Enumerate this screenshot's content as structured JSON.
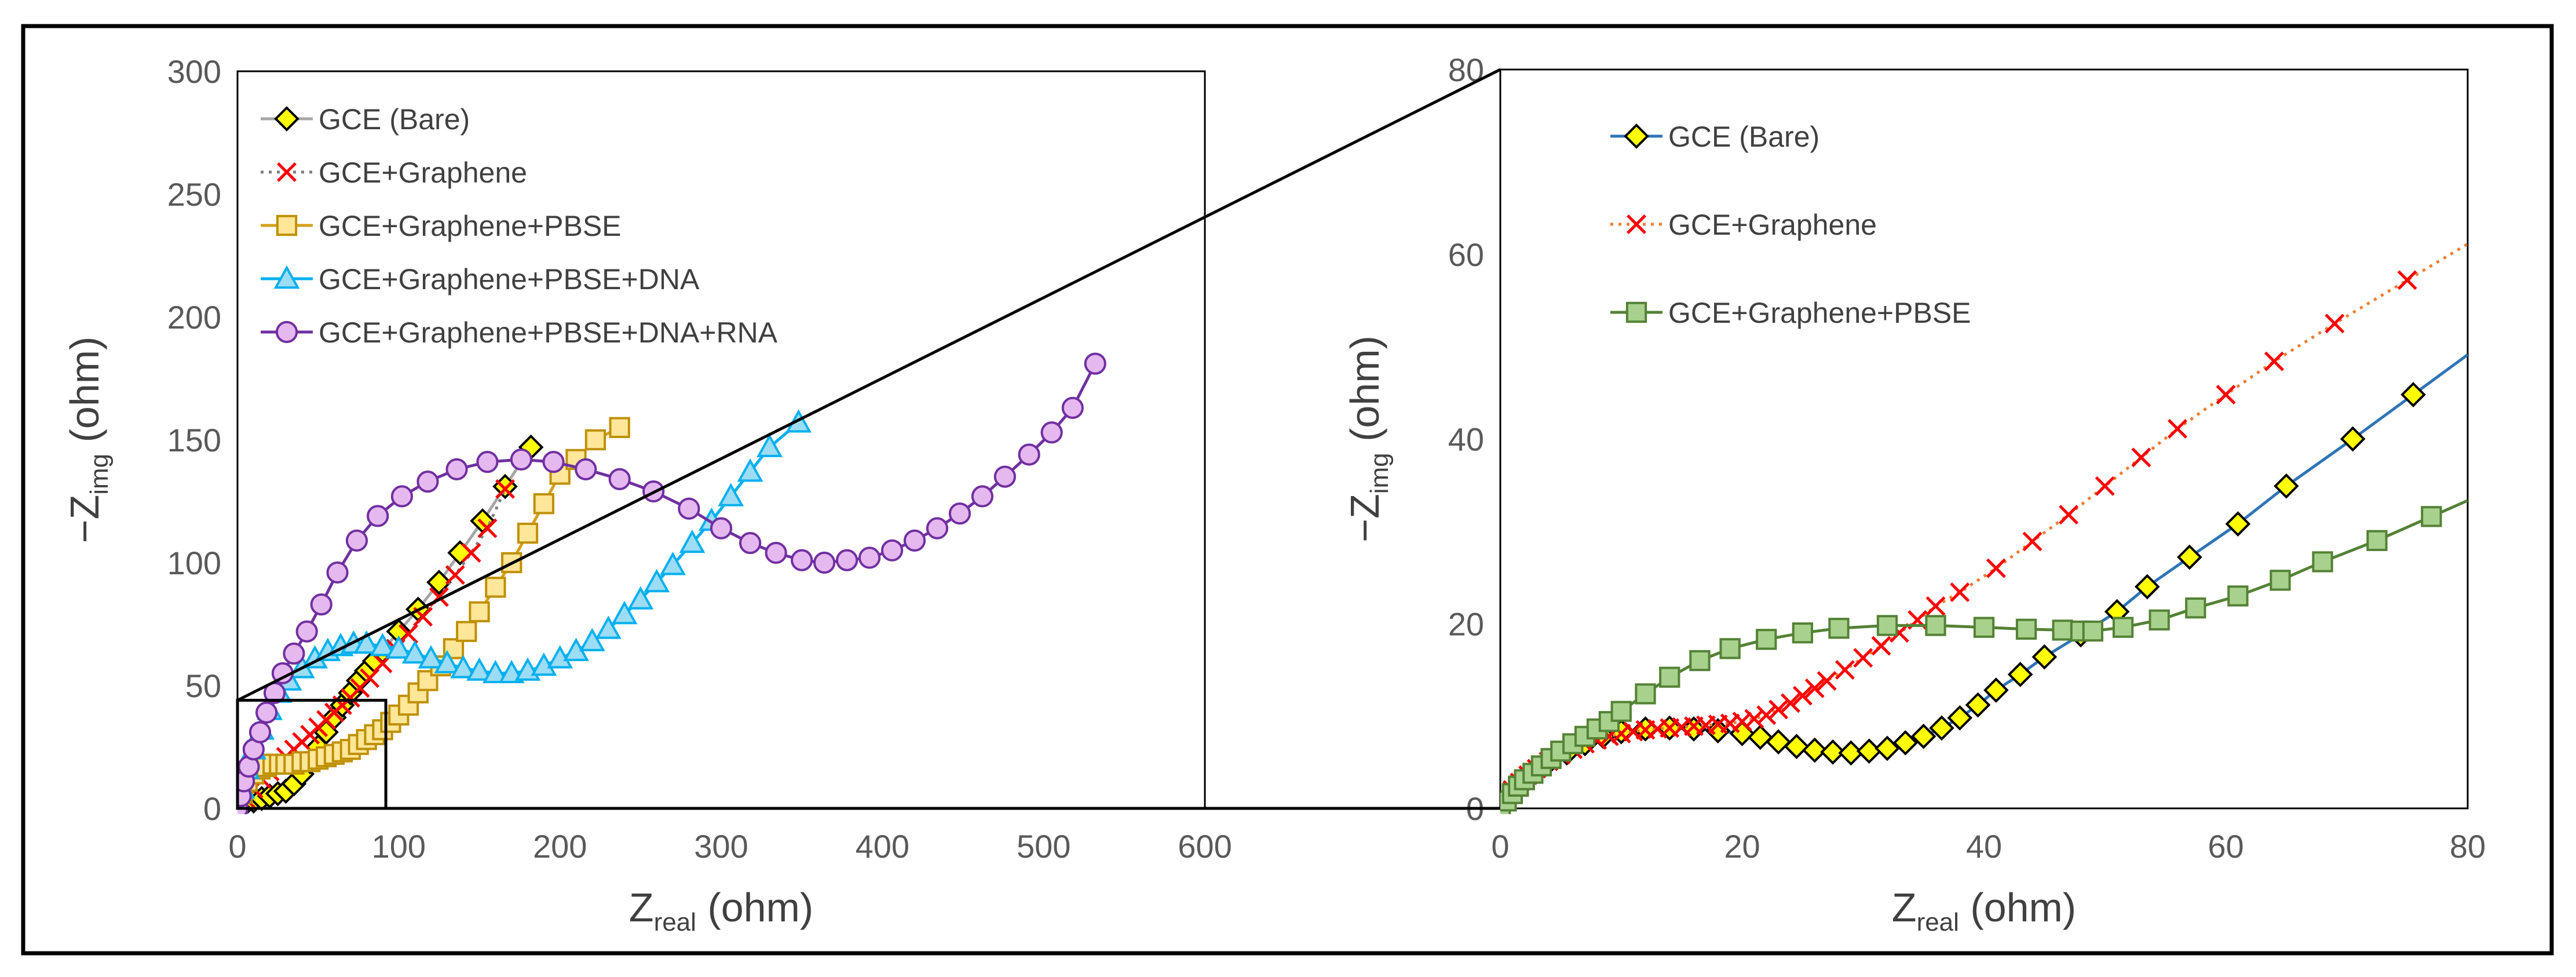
{
  "chart_data": [
    {
      "type": "scatter",
      "panel": "left",
      "xlabel_main": "Z",
      "xlabel_sub": "real",
      "xlabel_unit": " (ohm)",
      "ylabel_main": "−Z",
      "ylabel_sub": "img",
      "ylabel_unit": " (ohm)",
      "xlim": [
        0,
        600
      ],
      "ylim": [
        0,
        300
      ],
      "xticks": [
        "0",
        "100",
        "200",
        "300",
        "400",
        "500",
        "600"
      ],
      "yticks": [
        "0",
        "50",
        "100",
        "150",
        "200",
        "250",
        "300"
      ],
      "grid": false,
      "legend_position": "top-left",
      "zoom_box": {
        "x": [
          0,
          92
        ],
        "y": [
          0,
          44
        ]
      },
      "series": [
        {
          "name": "GCE (Bare)",
          "marker": "diamond",
          "marker_fill": "#ffff00",
          "marker_stroke": "#000000",
          "line_color": "#a6a6a6",
          "line_style": "solid",
          "x": [
            0,
            5,
            10,
            15,
            20,
            25,
            30,
            35,
            40,
            45,
            50,
            55,
            60,
            65,
            70,
            75,
            80,
            85,
            90,
            100,
            112,
            125,
            138,
            152,
            166,
            182
          ],
          "y": [
            0,
            2,
            3,
            4,
            5,
            6,
            7,
            10,
            14,
            19,
            25,
            31,
            37,
            42,
            47,
            52,
            56,
            60,
            64,
            72,
            81,
            92,
            104,
            117,
            131,
            147
          ]
        },
        {
          "name": "GCE+Graphene",
          "marker": "x",
          "marker_fill": "none",
          "marker_stroke": "#ff0000",
          "line_color": "#7f7f7f",
          "line_style": "dotted",
          "x": [
            0,
            5,
            10,
            15,
            20,
            25,
            30,
            35,
            40,
            45,
            50,
            55,
            60,
            65,
            70,
            76,
            82,
            90,
            98,
            106,
            115,
            125,
            135,
            145,
            155,
            166
          ],
          "y": [
            0,
            4,
            8,
            12,
            15,
            18,
            21,
            24,
            27,
            30,
            33,
            36,
            39,
            42,
            45,
            49,
            53,
            59,
            65,
            71,
            78,
            86,
            95,
            104,
            114,
            130
          ]
        },
        {
          "name": "GCE+Graphene+PBSE",
          "marker": "square",
          "marker_fill": "#ffe699",
          "marker_stroke": "#bf9000",
          "line_color": "#d4a017",
          "line_style": "solid",
          "x": [
            0,
            3,
            6,
            10,
            14,
            18,
            22,
            26,
            30,
            35,
            40,
            45,
            50,
            55,
            60,
            65,
            70,
            75,
            80,
            85,
            90,
            95,
            100,
            106,
            112,
            118,
            126,
            134,
            142,
            150,
            160,
            170,
            180,
            190,
            200,
            210,
            222,
            237
          ],
          "y": [
            0,
            6,
            11,
            14,
            16,
            17,
            18,
            18,
            18,
            18,
            19,
            19,
            20,
            21,
            22,
            23,
            24,
            26,
            28,
            30,
            32,
            35,
            38,
            42,
            47,
            52,
            58,
            65,
            72,
            80,
            90,
            100,
            112,
            124,
            136,
            142,
            150,
            155
          ]
        },
        {
          "name": "GCE+Graphene+PBSE+DNA",
          "marker": "triangle",
          "marker_fill": "#9ddcf5",
          "marker_stroke": "#00b0f0",
          "line_color": "#00b0f0",
          "line_style": "solid",
          "x": [
            0,
            3,
            6,
            10,
            15,
            20,
            26,
            32,
            40,
            48,
            56,
            64,
            72,
            80,
            90,
            100,
            110,
            120,
            130,
            140,
            150,
            160,
            170,
            180,
            190,
            200,
            210,
            220,
            230,
            240,
            250,
            260,
            270,
            282,
            294,
            306,
            318,
            330,
            348
          ],
          "y": [
            0,
            8,
            16,
            24,
            32,
            40,
            47,
            52,
            57,
            61,
            64,
            66,
            67,
            67,
            66,
            65,
            63,
            61,
            59,
            57,
            56,
            55,
            55,
            56,
            58,
            61,
            64,
            68,
            73,
            79,
            85,
            92,
            99,
            108,
            117,
            127,
            137,
            147,
            157
          ]
        },
        {
          "name": "GCE+Graphene+PBSE+DNA+RNA",
          "marker": "circle",
          "marker_fill": "#e6b8f0",
          "marker_stroke": "#7030a0",
          "line_color": "#7030a0",
          "line_style": "solid",
          "x": [
            0,
            2,
            4,
            7,
            10,
            14,
            18,
            23,
            28,
            35,
            43,
            52,
            62,
            74,
            87,
            102,
            118,
            136,
            155,
            176,
            196,
            216,
            237,
            258,
            280,
            300,
            318,
            334,
            350,
            364,
            378,
            392,
            406,
            420,
            434,
            448,
            462,
            476,
            491,
            505,
            518,
            532
          ],
          "y": [
            0,
            5,
            11,
            17,
            24,
            31,
            39,
            47,
            55,
            63,
            72,
            83,
            96,
            109,
            119,
            127,
            133,
            138,
            141,
            142,
            141,
            138,
            134,
            129,
            122,
            114,
            108,
            104,
            101,
            100,
            101,
            102,
            105,
            109,
            114,
            120,
            127,
            135,
            144,
            153,
            163,
            181
          ]
        }
      ]
    },
    {
      "type": "scatter",
      "panel": "right",
      "xlabel_main": "Z",
      "xlabel_sub": "real",
      "xlabel_unit": " (ohm)",
      "ylabel_main": "−Z",
      "ylabel_sub": "img",
      "ylabel_unit": " (ohm)",
      "xlim": [
        0,
        80
      ],
      "ylim": [
        0,
        80
      ],
      "xticks": [
        "0",
        "20",
        "40",
        "60",
        "80"
      ],
      "yticks": [
        "0",
        "20",
        "40",
        "60",
        "80"
      ],
      "grid": false,
      "legend_position": "top-left",
      "series": [
        {
          "name": "GCE (Bare)",
          "marker": "diamond",
          "marker_fill": "#ffff00",
          "marker_stroke": "#000000",
          "line_color": "#2e75b6",
          "line_style": "solid",
          "extend_to_x": 80,
          "x": [
            0,
            0.6,
            1.2,
            2,
            3,
            4,
            5.5,
            7,
            8.5,
            10,
            12,
            14,
            16,
            18,
            20,
            21.5,
            23,
            24.5,
            26,
            27.5,
            29,
            30.5,
            32,
            33.5,
            35,
            36.5,
            38,
            39.5,
            41,
            43,
            45,
            48,
            51,
            53.5,
            57,
            61,
            65,
            70.5,
            75.5
          ],
          "y": [
            0,
            1,
            2,
            3,
            4,
            5,
            6,
            7,
            7.8,
            8.3,
            8.6,
            8.7,
            8.6,
            8.4,
            8.1,
            7.7,
            7.2,
            6.7,
            6.3,
            6.1,
            6.0,
            6.2,
            6.5,
            7.1,
            7.8,
            8.7,
            9.8,
            11.2,
            12.8,
            14.5,
            16.4,
            18.8,
            21.3,
            24,
            27.2,
            30.8,
            34.9,
            40,
            44.8
          ]
        },
        {
          "name": "GCE+Graphene",
          "marker": "x",
          "marker_fill": "none",
          "marker_stroke": "#ff0000",
          "line_color": "#ed7d31",
          "line_style": "dotted",
          "extend_to_x": 80,
          "x": [
            0,
            0.5,
            1,
            1.6,
            2.3,
            3,
            4,
            5,
            6,
            7,
            8,
            9,
            10,
            11,
            12,
            13,
            14,
            15,
            16,
            17,
            18,
            19,
            20,
            21,
            22,
            23,
            24,
            25,
            26,
            27,
            28.5,
            30,
            31.5,
            33,
            34.5,
            36,
            38,
            41,
            44,
            47,
            50,
            53,
            56,
            60,
            64,
            69,
            75
          ],
          "y": [
            0,
            1,
            2,
            2.8,
            3.6,
            4.3,
            5.1,
            5.8,
            6.4,
            7,
            7.4,
            7.8,
            8.1,
            8.3,
            8.5,
            8.6,
            8.7,
            8.8,
            8.9,
            9,
            9.1,
            9.2,
            9.4,
            9.7,
            10.1,
            10.7,
            11.4,
            12.2,
            13,
            13.8,
            15,
            16.3,
            17.6,
            19,
            20.4,
            21.9,
            23.4,
            26,
            28.9,
            31.8,
            34.9,
            38,
            41.1,
            44.8,
            48.4,
            52.5,
            57.2
          ]
        },
        {
          "name": "GCE+Graphene+PBSE",
          "marker": "square",
          "marker_fill": "#a9d18e",
          "marker_stroke": "#548235",
          "line_color": "#548235",
          "line_style": "solid",
          "extend_to_x": 80,
          "x": [
            0,
            0.5,
            1,
            1.5,
            2,
            2.7,
            3.4,
            4.2,
            5,
            6,
            7,
            8,
            9,
            10,
            12,
            14,
            16.5,
            19,
            22,
            25,
            28,
            32,
            36,
            40,
            43.5,
            46.5,
            48,
            49,
            51.5,
            54.5,
            57.5,
            61,
            64.5,
            68,
            72.5,
            77
          ],
          "y": [
            0,
            0.8,
            1.6,
            2.4,
            3.1,
            3.8,
            4.6,
            5.4,
            6.2,
            7,
            7.8,
            8.6,
            9.4,
            10.5,
            12.4,
            14.2,
            16,
            17.3,
            18.3,
            19,
            19.5,
            19.8,
            19.8,
            19.6,
            19.4,
            19.3,
            19.2,
            19.2,
            19.6,
            20.4,
            21.7,
            23,
            24.7,
            26.7,
            29,
            31.6
          ]
        }
      ]
    }
  ]
}
